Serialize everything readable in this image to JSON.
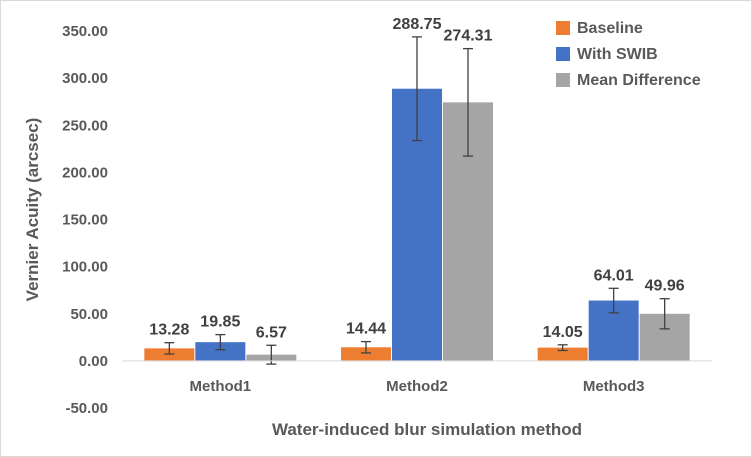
{
  "chart_data": {
    "type": "bar",
    "title": "",
    "xlabel": "Water-induced blur simulation method",
    "ylabel": "Vernier Acuity (arcsec)",
    "ylim": [
      -50,
      350
    ],
    "yticks": [
      -50,
      0,
      50,
      100,
      150,
      200,
      250,
      300,
      350
    ],
    "ytick_labels": [
      "-50.00",
      "0.00",
      "50.00",
      "100.00",
      "150.00",
      "200.00",
      "250.00",
      "300.00",
      "350.00"
    ],
    "categories": [
      "Method1",
      "Method2",
      "Method3"
    ],
    "grid": false,
    "legend_position": "top-right",
    "series": [
      {
        "name": "Baseline",
        "color": "#ed7d31",
        "values": [
          13.28,
          14.44,
          14.05
        ],
        "labels": [
          "13.28",
          "14.44",
          "14.05"
        ],
        "errors": [
          6,
          6,
          3
        ]
      },
      {
        "name": "With SWIB",
        "color": "#4472c4",
        "values": [
          19.85,
          288.75,
          64.01
        ],
        "labels": [
          "19.85",
          "288.75",
          "64.01"
        ],
        "errors": [
          8,
          55,
          13
        ]
      },
      {
        "name": "Mean Difference",
        "color": "#a5a5a5",
        "values": [
          6.57,
          274.31,
          49.96
        ],
        "labels": [
          "6.57",
          "274.31",
          "49.96"
        ],
        "errors": [
          10,
          57,
          16
        ]
      }
    ]
  }
}
